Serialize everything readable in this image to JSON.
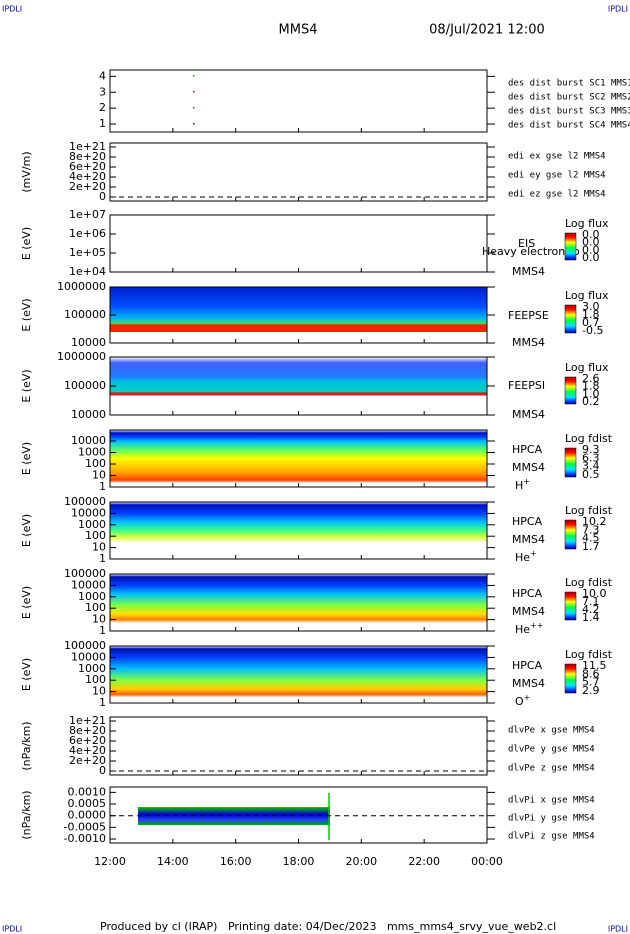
{
  "header": {
    "title": "MMS4",
    "date": "08/Jul/2021 12:00"
  },
  "corners": [
    "IPDLI",
    "IPDLI",
    "IPDLI",
    "IPDLI"
  ],
  "panels": [
    {
      "type": "line",
      "ylim": [
        0.5,
        4.4
      ],
      "yticks": [
        1,
        2,
        3,
        4
      ],
      "right_labels": [
        {
          "text": "des dist burst SC1 MMS1",
          "color": "#0000cc"
        },
        {
          "text": "des dist burst SC2 MMS2",
          "color": "#cc00cc"
        },
        {
          "text": "des dist burst SC3 MMS3",
          "color": "#cc0000"
        },
        {
          "text": "des dist burst SC4 MMS4",
          "color": "#00bb00"
        }
      ]
    },
    {
      "type": "line",
      "ylabel": "(mV/m)",
      "ylim": [
        -8e+19,
        1.08e+21
      ],
      "dashed_zero": true,
      "yticks": [
        {
          "value": 0,
          "label": "0"
        },
        {
          "value": 2e+20,
          "label": "2e+20"
        },
        {
          "value": 4e+20,
          "label": "4e+20"
        },
        {
          "value": 6e+20,
          "label": "6e+20"
        },
        {
          "value": 8e+20,
          "label": "8e+20"
        },
        {
          "value": 1e+21,
          "label": "1e+21"
        }
      ],
      "right_labels": [
        {
          "text": "edi ex gse l2 MMS4",
          "color": "#cc0000"
        },
        {
          "text": "edi ey gse l2 MMS4",
          "color": "#00bb00"
        },
        {
          "text": "edi ez gse l2 MMS4",
          "color": "#0000cc"
        }
      ]
    },
    {
      "type": "spectrogram",
      "ylabel": "E (eV)",
      "log": true,
      "ylim": [
        10000,
        10000000
      ],
      "yticks": [
        {
          "value": 10000,
          "label": "1e+04"
        },
        {
          "value": 100000,
          "label": "1e+05"
        },
        {
          "value": 1000000,
          "label": "1e+06"
        },
        {
          "value": 10000000,
          "label": "1e+07"
        }
      ],
      "instrument": "EIS",
      "mission": "MMS4",
      "note": "Heavy electron to",
      "colorbar": {
        "title": "Log flux",
        "labels": [
          "0.0",
          "0.0",
          "0.0",
          "0.0"
        ]
      }
    },
    {
      "type": "spectrogram",
      "ylabel": "E (eV)",
      "log": true,
      "ylim": [
        10000,
        1000000
      ],
      "yticks": [
        10000,
        100000,
        1000000
      ],
      "instrument": "FEEPSE",
      "mission": "MMS4",
      "colorbar": {
        "title": "Log flux",
        "labels": [
          "3.0",
          "1.8",
          "0.7",
          "-0.5"
        ]
      }
    },
    {
      "type": "spectrogram",
      "ylabel": "E (eV)",
      "log": true,
      "ylim": [
        10000,
        1000000
      ],
      "yticks": [
        10000,
        100000,
        1000000
      ],
      "instrument": "FEEPSI",
      "mission": "MMS4",
      "colorbar": {
        "title": "Log flux",
        "labels": [
          "2.6",
          "1.8",
          "1.0",
          "0.2"
        ]
      }
    },
    {
      "type": "spectrogram",
      "ylabel": "E (eV)",
      "log": true,
      "ylim": [
        1,
        90000
      ],
      "yticks": [
        1,
        10,
        100,
        1000,
        10000
      ],
      "instrument": "HPCA",
      "mission": "MMS4",
      "species": {
        "name": "H",
        "charge": "+"
      },
      "colorbar": {
        "title": "Log fdist",
        "labels": [
          "9.3",
          "6.3",
          "3.4",
          "0.5"
        ]
      }
    },
    {
      "type": "spectrogram",
      "ylabel": "E (eV)",
      "log": true,
      "ylim": [
        1,
        100000
      ],
      "yticks": [
        1,
        10,
        100,
        1000,
        10000,
        100000
      ],
      "instrument": "HPCA",
      "mission": "MMS4",
      "species": {
        "name": "He",
        "charge": "+"
      },
      "colorbar": {
        "title": "Log fdist",
        "labels": [
          "10.2",
          "7.3",
          "4.5",
          "1.7"
        ]
      }
    },
    {
      "type": "spectrogram",
      "ylabel": "E (eV)",
      "log": true,
      "ylim": [
        1,
        100000
      ],
      "yticks": [
        1,
        10,
        100,
        1000,
        10000,
        100000
      ],
      "instrument": "HPCA",
      "mission": "MMS4",
      "species": {
        "name": "He",
        "charge": "++"
      },
      "colorbar": {
        "title": "Log fdist",
        "labels": [
          "10.0",
          "7.1",
          "4.2",
          "1.4"
        ]
      }
    },
    {
      "type": "spectrogram",
      "ylabel": "E (eV)",
      "log": true,
      "ylim": [
        1,
        100000
      ],
      "yticks": [
        1,
        10,
        100,
        1000,
        10000,
        100000
      ],
      "instrument": "HPCA",
      "mission": "MMS4",
      "species": {
        "name": "O",
        "charge": "+"
      },
      "colorbar": {
        "title": "Log fdist",
        "labels": [
          "11.5",
          "8.6",
          "5.7",
          "2.9"
        ]
      }
    },
    {
      "type": "line",
      "ylabel": "(nPa/km)",
      "ylim": [
        -8e+19,
        1.08e+21
      ],
      "dashed_zero": true,
      "yticks": [
        {
          "value": 0,
          "label": "0"
        },
        {
          "value": 2e+20,
          "label": "2e+20"
        },
        {
          "value": 4e+20,
          "label": "4e+20"
        },
        {
          "value": 6e+20,
          "label": "6e+20"
        },
        {
          "value": 8e+20,
          "label": "8e+20"
        },
        {
          "value": 1e+21,
          "label": "1e+21"
        }
      ],
      "right_labels": [
        {
          "text": "dlvPe x gse MMS4",
          "color": "#cc0000"
        },
        {
          "text": "dlvPe y gse MMS4",
          "color": "#00bb00"
        },
        {
          "text": "dlvPe z gse MMS4",
          "color": "#0000cc"
        }
      ]
    },
    {
      "type": "line",
      "ylabel": "(nPa/km)",
      "ylim": [
        -0.00117,
        0.00123
      ],
      "dashed_zero": true,
      "yticks": [
        {
          "value": -0.001,
          "label": "-0.0010"
        },
        {
          "value": -0.0005,
          "label": "-0.0005"
        },
        {
          "value": 0,
          "label": "0.0000"
        },
        {
          "value": 0.0005,
          "label": "0.0005"
        },
        {
          "value": 0.001,
          "label": "0.0010"
        }
      ],
      "right_labels": [
        {
          "text": "dlvPi x gse MMS4",
          "color": "#cc0000"
        },
        {
          "text": "dlvPi y gse MMS4",
          "color": "#00bb00"
        },
        {
          "text": "dlvPi z gse MMS4",
          "color": "#0000cc"
        }
      ]
    }
  ],
  "xaxis": {
    "xlim": [
      12,
      24
    ],
    "xticks": [
      {
        "value": 12,
        "label": "12:00"
      },
      {
        "value": 14,
        "label": "14:00"
      },
      {
        "value": 16,
        "label": "16:00"
      },
      {
        "value": 18,
        "label": "18:00"
      },
      {
        "value": 20,
        "label": "20:00"
      },
      {
        "value": 22,
        "label": "22:00"
      },
      {
        "value": 24,
        "label": "00:00"
      }
    ]
  },
  "footer": "Produced by cl (IRAP)   Printing date: 04/Dec/2023   mms_mms4_srvy_vue_web2.cl"
}
